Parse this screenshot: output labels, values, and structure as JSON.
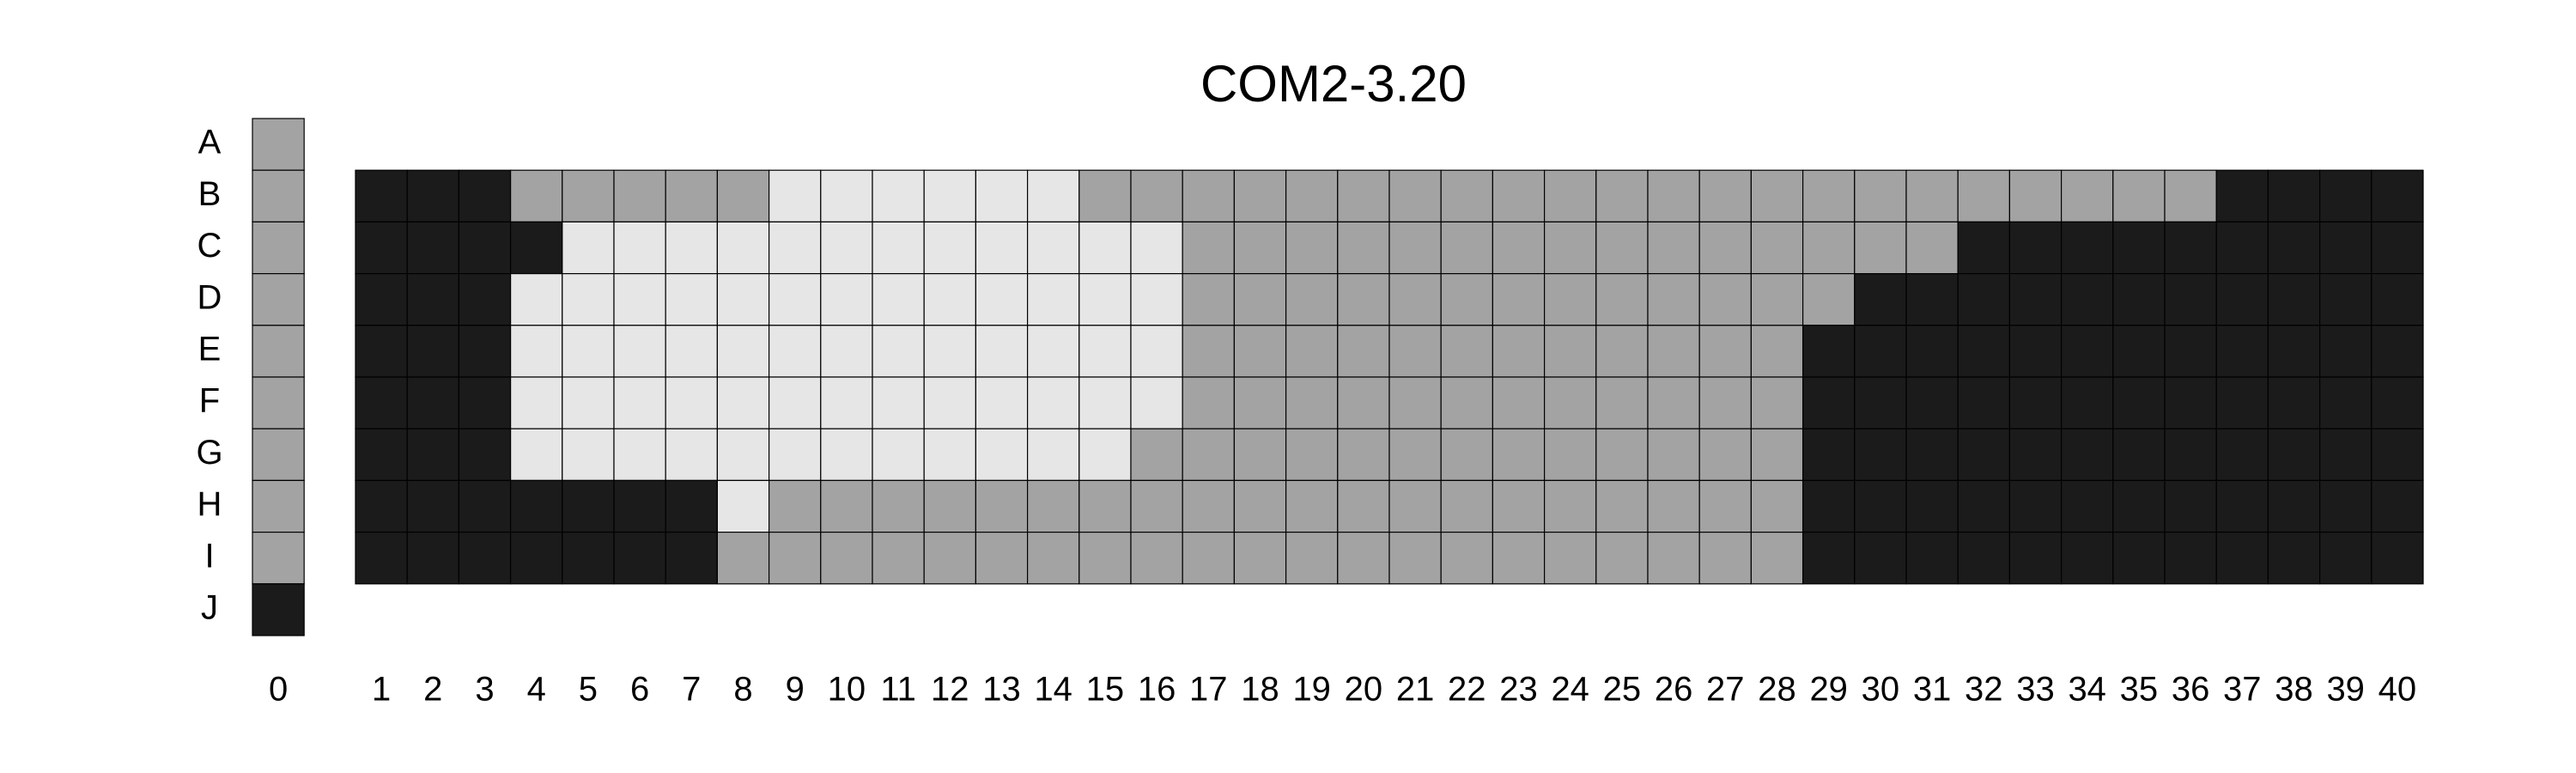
{
  "chart_data": {
    "type": "heatmap",
    "title": "COM2-3.20",
    "rows": [
      "A",
      "B",
      "C",
      "D",
      "E",
      "F",
      "G",
      "H",
      "I",
      "J"
    ],
    "columns": [
      "1",
      "2",
      "3",
      "4",
      "5",
      "6",
      "7",
      "8",
      "9",
      "10",
      "11",
      "12",
      "13",
      "14",
      "15",
      "16",
      "17",
      "18",
      "19",
      "20",
      "21",
      "22",
      "23",
      "24",
      "25",
      "26",
      "27",
      "28",
      "29",
      "30",
      "31",
      "32",
      "33",
      "34",
      "35",
      "36",
      "37",
      "38",
      "39",
      "40"
    ],
    "side_column_label": "0",
    "levels": {
      "dark": "#1b1b1b",
      "mid": "#a3a3a3",
      "light": "#e6e6e6"
    },
    "side_column": [
      "mid",
      "mid",
      "mid",
      "mid",
      "mid",
      "mid",
      "mid",
      "mid",
      "mid",
      "dark"
    ],
    "grid_row_labels": [
      "B",
      "C",
      "D",
      "E",
      "F",
      "G",
      "H",
      "I"
    ],
    "grid": [
      "DDDMMMMMLLLLLLMMMMMMMMMMMMMMMMMMMMMMDDDD",
      "DDDDLLLLLLLLLLLLMMMMMMMMMMMMMMMDDDDDDDDD",
      "DDDLLLLLLLLLLLLLMMMMMMMMMMMMMDDDDDDDDDDD",
      "DDDLLLLLLLLLLLLLMMMMMMMMMMMMDDDDDDDDDDDD",
      "DDDLLLLLLLLLLLLLMMMMMMMMMMMMDDDDDDDDDDDD",
      "DDDLLLLLLLLLLLLMMMMMMMMMMMMMDDDDDDDDDDDD",
      "DDDDDDDLMMMMMMMMMMMMMMMMMMMMDDDDDDDDDDDD",
      "DDDDDDDMMMMMMMMMMMMMMMMMMMMMDDDDDDDDDDDD"
    ],
    "grid_code": {
      "D": "dark",
      "M": "mid",
      "L": "light"
    }
  }
}
